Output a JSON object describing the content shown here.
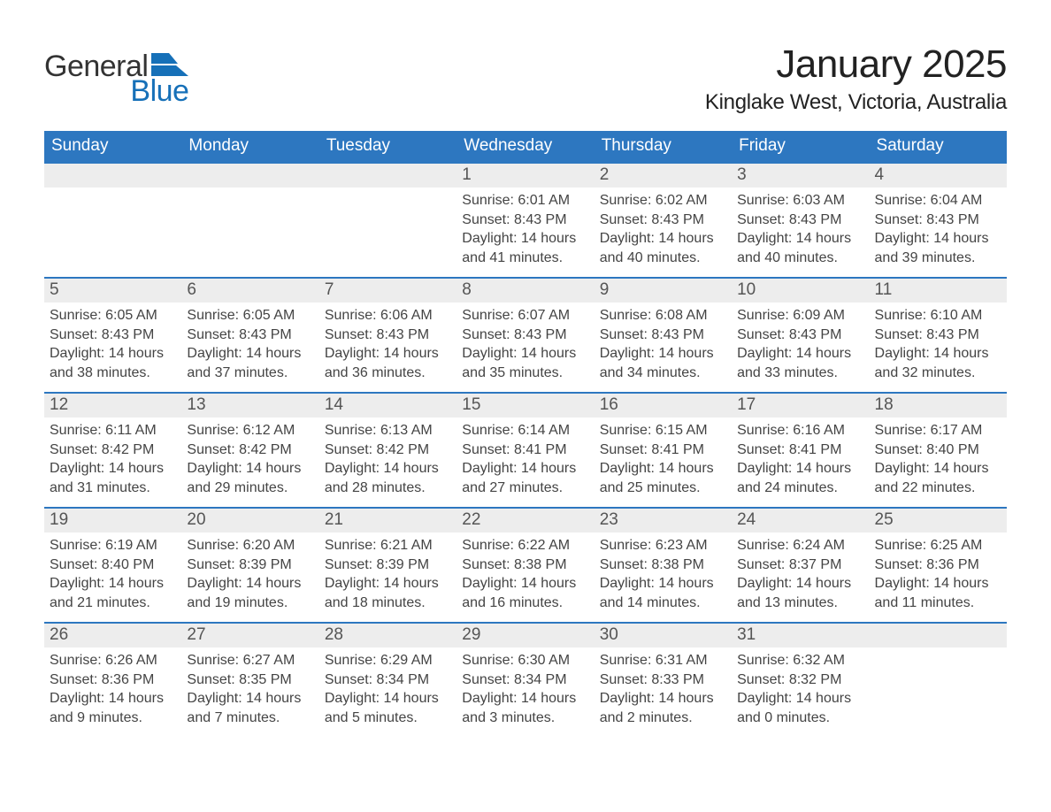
{
  "logo": {
    "word1": "General",
    "word2": "Blue",
    "mark_color": "#1670b8"
  },
  "title": "January 2025",
  "location": "Kinglake West, Victoria, Australia",
  "colors": {
    "header_bg": "#2d77c0",
    "header_text": "#ffffff",
    "day_strip_bg": "#ededed",
    "week_border": "#2d77c0",
    "body_text": "#444444",
    "logo_blue": "#1670b8"
  },
  "day_headers": [
    "Sunday",
    "Monday",
    "Tuesday",
    "Wednesday",
    "Thursday",
    "Friday",
    "Saturday"
  ],
  "weeks": [
    [
      {
        "day": "",
        "sunrise": "",
        "sunset": "",
        "daylight": ""
      },
      {
        "day": "",
        "sunrise": "",
        "sunset": "",
        "daylight": ""
      },
      {
        "day": "",
        "sunrise": "",
        "sunset": "",
        "daylight": ""
      },
      {
        "day": "1",
        "sunrise": "Sunrise: 6:01 AM",
        "sunset": "Sunset: 8:43 PM",
        "daylight": "Daylight: 14 hours and 41 minutes."
      },
      {
        "day": "2",
        "sunrise": "Sunrise: 6:02 AM",
        "sunset": "Sunset: 8:43 PM",
        "daylight": "Daylight: 14 hours and 40 minutes."
      },
      {
        "day": "3",
        "sunrise": "Sunrise: 6:03 AM",
        "sunset": "Sunset: 8:43 PM",
        "daylight": "Daylight: 14 hours and 40 minutes."
      },
      {
        "day": "4",
        "sunrise": "Sunrise: 6:04 AM",
        "sunset": "Sunset: 8:43 PM",
        "daylight": "Daylight: 14 hours and 39 minutes."
      }
    ],
    [
      {
        "day": "5",
        "sunrise": "Sunrise: 6:05 AM",
        "sunset": "Sunset: 8:43 PM",
        "daylight": "Daylight: 14 hours and 38 minutes."
      },
      {
        "day": "6",
        "sunrise": "Sunrise: 6:05 AM",
        "sunset": "Sunset: 8:43 PM",
        "daylight": "Daylight: 14 hours and 37 minutes."
      },
      {
        "day": "7",
        "sunrise": "Sunrise: 6:06 AM",
        "sunset": "Sunset: 8:43 PM",
        "daylight": "Daylight: 14 hours and 36 minutes."
      },
      {
        "day": "8",
        "sunrise": "Sunrise: 6:07 AM",
        "sunset": "Sunset: 8:43 PM",
        "daylight": "Daylight: 14 hours and 35 minutes."
      },
      {
        "day": "9",
        "sunrise": "Sunrise: 6:08 AM",
        "sunset": "Sunset: 8:43 PM",
        "daylight": "Daylight: 14 hours and 34 minutes."
      },
      {
        "day": "10",
        "sunrise": "Sunrise: 6:09 AM",
        "sunset": "Sunset: 8:43 PM",
        "daylight": "Daylight: 14 hours and 33 minutes."
      },
      {
        "day": "11",
        "sunrise": "Sunrise: 6:10 AM",
        "sunset": "Sunset: 8:43 PM",
        "daylight": "Daylight: 14 hours and 32 minutes."
      }
    ],
    [
      {
        "day": "12",
        "sunrise": "Sunrise: 6:11 AM",
        "sunset": "Sunset: 8:42 PM",
        "daylight": "Daylight: 14 hours and 31 minutes."
      },
      {
        "day": "13",
        "sunrise": "Sunrise: 6:12 AM",
        "sunset": "Sunset: 8:42 PM",
        "daylight": "Daylight: 14 hours and 29 minutes."
      },
      {
        "day": "14",
        "sunrise": "Sunrise: 6:13 AM",
        "sunset": "Sunset: 8:42 PM",
        "daylight": "Daylight: 14 hours and 28 minutes."
      },
      {
        "day": "15",
        "sunrise": "Sunrise: 6:14 AM",
        "sunset": "Sunset: 8:41 PM",
        "daylight": "Daylight: 14 hours and 27 minutes."
      },
      {
        "day": "16",
        "sunrise": "Sunrise: 6:15 AM",
        "sunset": "Sunset: 8:41 PM",
        "daylight": "Daylight: 14 hours and 25 minutes."
      },
      {
        "day": "17",
        "sunrise": "Sunrise: 6:16 AM",
        "sunset": "Sunset: 8:41 PM",
        "daylight": "Daylight: 14 hours and 24 minutes."
      },
      {
        "day": "18",
        "sunrise": "Sunrise: 6:17 AM",
        "sunset": "Sunset: 8:40 PM",
        "daylight": "Daylight: 14 hours and 22 minutes."
      }
    ],
    [
      {
        "day": "19",
        "sunrise": "Sunrise: 6:19 AM",
        "sunset": "Sunset: 8:40 PM",
        "daylight": "Daylight: 14 hours and 21 minutes."
      },
      {
        "day": "20",
        "sunrise": "Sunrise: 6:20 AM",
        "sunset": "Sunset: 8:39 PM",
        "daylight": "Daylight: 14 hours and 19 minutes."
      },
      {
        "day": "21",
        "sunrise": "Sunrise: 6:21 AM",
        "sunset": "Sunset: 8:39 PM",
        "daylight": "Daylight: 14 hours and 18 minutes."
      },
      {
        "day": "22",
        "sunrise": "Sunrise: 6:22 AM",
        "sunset": "Sunset: 8:38 PM",
        "daylight": "Daylight: 14 hours and 16 minutes."
      },
      {
        "day": "23",
        "sunrise": "Sunrise: 6:23 AM",
        "sunset": "Sunset: 8:38 PM",
        "daylight": "Daylight: 14 hours and 14 minutes."
      },
      {
        "day": "24",
        "sunrise": "Sunrise: 6:24 AM",
        "sunset": "Sunset: 8:37 PM",
        "daylight": "Daylight: 14 hours and 13 minutes."
      },
      {
        "day": "25",
        "sunrise": "Sunrise: 6:25 AM",
        "sunset": "Sunset: 8:36 PM",
        "daylight": "Daylight: 14 hours and 11 minutes."
      }
    ],
    [
      {
        "day": "26",
        "sunrise": "Sunrise: 6:26 AM",
        "sunset": "Sunset: 8:36 PM",
        "daylight": "Daylight: 14 hours and 9 minutes."
      },
      {
        "day": "27",
        "sunrise": "Sunrise: 6:27 AM",
        "sunset": "Sunset: 8:35 PM",
        "daylight": "Daylight: 14 hours and 7 minutes."
      },
      {
        "day": "28",
        "sunrise": "Sunrise: 6:29 AM",
        "sunset": "Sunset: 8:34 PM",
        "daylight": "Daylight: 14 hours and 5 minutes."
      },
      {
        "day": "29",
        "sunrise": "Sunrise: 6:30 AM",
        "sunset": "Sunset: 8:34 PM",
        "daylight": "Daylight: 14 hours and 3 minutes."
      },
      {
        "day": "30",
        "sunrise": "Sunrise: 6:31 AM",
        "sunset": "Sunset: 8:33 PM",
        "daylight": "Daylight: 14 hours and 2 minutes."
      },
      {
        "day": "31",
        "sunrise": "Sunrise: 6:32 AM",
        "sunset": "Sunset: 8:32 PM",
        "daylight": "Daylight: 14 hours and 0 minutes."
      },
      {
        "day": "",
        "sunrise": "",
        "sunset": "",
        "daylight": ""
      }
    ]
  ]
}
